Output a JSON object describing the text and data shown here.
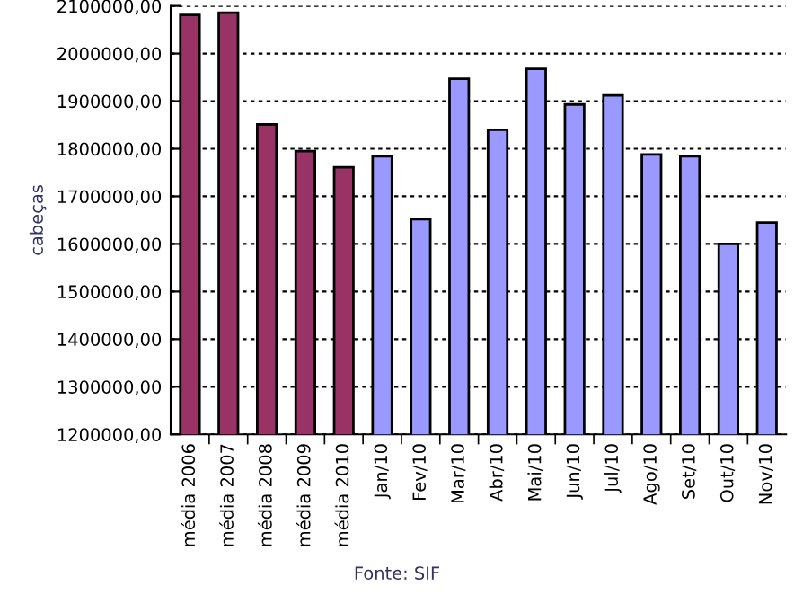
{
  "chart_data": {
    "type": "bar",
    "ylabel": "cabeças",
    "annotations": [
      "Fonte: SIF"
    ],
    "categories": [
      "média 2006",
      "média 2007",
      "média 2008",
      "média 2009",
      "média 2010",
      "Jan/10",
      "Fev/10",
      "Mar/10",
      "Abr/10",
      "Mai/10",
      "Jun/10",
      "Jul/10",
      "Ago/10",
      "Set/10",
      "Out/10",
      "Nov/10"
    ],
    "values": [
      2081000,
      2086000,
      1851000,
      1795000,
      1761000,
      1784000,
      1652000,
      1947000,
      1840000,
      1968000,
      1893000,
      1912000,
      1788000,
      1784000,
      1600000,
      1645000
    ],
    "colors": [
      "#993366",
      "#993366",
      "#993366",
      "#993366",
      "#993366",
      "#9999ff",
      "#9999ff",
      "#9999ff",
      "#9999ff",
      "#9999ff",
      "#9999ff",
      "#9999ff",
      "#9999ff",
      "#9999ff",
      "#9999ff",
      "#9999ff"
    ],
    "ylim": [
      1200000,
      2100000
    ],
    "yticks": [
      {
        "value": 1200000,
        "label": "1200000,00"
      },
      {
        "value": 1300000,
        "label": "1300000,00"
      },
      {
        "value": 1400000,
        "label": "1400000,00"
      },
      {
        "value": 1500000,
        "label": "1500000,00"
      },
      {
        "value": 1600000,
        "label": "1600000,00"
      },
      {
        "value": 1700000,
        "label": "1700000,00"
      },
      {
        "value": 1800000,
        "label": "1800000,00"
      },
      {
        "value": 1900000,
        "label": "1900000,00"
      },
      {
        "value": 2000000,
        "label": "2000000,00"
      },
      {
        "value": 2100000,
        "label": "2100000,00"
      }
    ],
    "grid": "y"
  }
}
